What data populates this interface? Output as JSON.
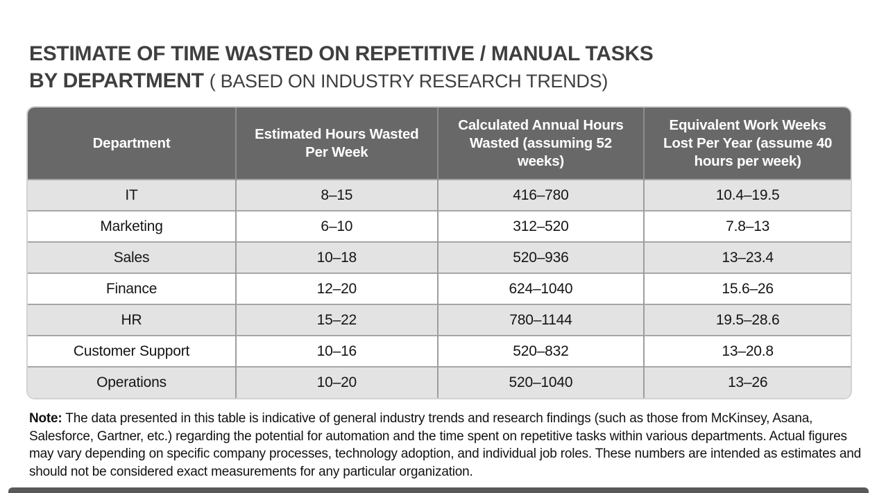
{
  "colors": {
    "title": "#3f3f3f",
    "header_bg": "#686868",
    "header_text": "#ffffff",
    "row_odd": "#e3e3e3",
    "row_even": "#ffffff",
    "cell_text": "#141414",
    "note_text": "#111111",
    "bottom_bar": "#595959"
  },
  "header": {
    "title_line1": "ESTIMATE OF TIME WASTED ON REPETITIVE / MANUAL TASKS",
    "title_line2_bold": "BY DEPARTMENT",
    "title_line2_light": "( BASED ON INDUSTRY RESEARCH TRENDS)"
  },
  "table": {
    "columns": [
      "Department",
      "Estimated Hours Wasted Per Week",
      "Calculated Annual Hours Wasted (assuming 52 weeks)",
      "Equivalent Work Weeks Lost Per Year (assume 40 hours per week)"
    ],
    "rows": [
      [
        "IT",
        "8–15",
        "416–780",
        "10.4–19.5"
      ],
      [
        "Marketing",
        "6–10",
        "312–520",
        "7.8–13"
      ],
      [
        "Sales",
        "10–18",
        "520–936",
        "13–23.4"
      ],
      [
        "Finance",
        "12–20",
        "624–1040",
        "15.6–26"
      ],
      [
        "HR",
        "15–22",
        "780–1144",
        "19.5–28.6"
      ],
      [
        "Customer Support",
        "10–16",
        "520–832",
        "13–20.8"
      ],
      [
        "Operations",
        "10–20",
        "520–1040",
        "13–26"
      ]
    ]
  },
  "note": {
    "label": "Note:",
    "text": " The data presented in this table is indicative of general industry trends and research findings (such as those from McKinsey, Asana, Salesforce, Gartner, etc.) regarding the potential for automation and the time spent on repetitive tasks within various departments. Actual figures may vary depending on specific company processes, technology adoption, and individual job roles. These numbers are intended as estimates and should not be considered exact measurements for any particular organization."
  },
  "chart_data": {
    "type": "table",
    "title": "ESTIMATE OF TIME WASTED ON REPETITIVE / MANUAL TASKS BY DEPARTMENT (BASED ON INDUSTRY RESEARCH TRENDS)",
    "columns": [
      "Department",
      "Estimated Hours Wasted Per Week",
      "Calculated Annual Hours Wasted (assuming 52 weeks)",
      "Equivalent Work Weeks Lost Per Year (assume 40 hours per week)"
    ],
    "rows": [
      {
        "department": "IT",
        "hours_per_week": "8–15",
        "annual_hours": "416–780",
        "work_weeks_lost": "10.4–19.5"
      },
      {
        "department": "Marketing",
        "hours_per_week": "6–10",
        "annual_hours": "312–520",
        "work_weeks_lost": "7.8–13"
      },
      {
        "department": "Sales",
        "hours_per_week": "10–18",
        "annual_hours": "520–936",
        "work_weeks_lost": "13–23.4"
      },
      {
        "department": "Finance",
        "hours_per_week": "12–20",
        "annual_hours": "624–1040",
        "work_weeks_lost": "15.6–26"
      },
      {
        "department": "HR",
        "hours_per_week": "15–22",
        "annual_hours": "780–1144",
        "work_weeks_lost": "19.5–28.6"
      },
      {
        "department": "Customer Support",
        "hours_per_week": "10–16",
        "annual_hours": "520–832",
        "work_weeks_lost": "13–20.8"
      },
      {
        "department": "Operations",
        "hours_per_week": "10–20",
        "annual_hours": "520–1040",
        "work_weeks_lost": "13–26"
      }
    ],
    "note": "Note: The data presented in this table is indicative of general industry trends and research findings (such as those from McKinsey, Asana, Salesforce, Gartner, etc.) regarding the potential for automation and the time spent on repetitive tasks within various departments. Actual figures may vary depending on specific company processes, technology adoption, and individual job roles. These numbers are intended as estimates and should not be considered exact measurements for any particular organization."
  }
}
